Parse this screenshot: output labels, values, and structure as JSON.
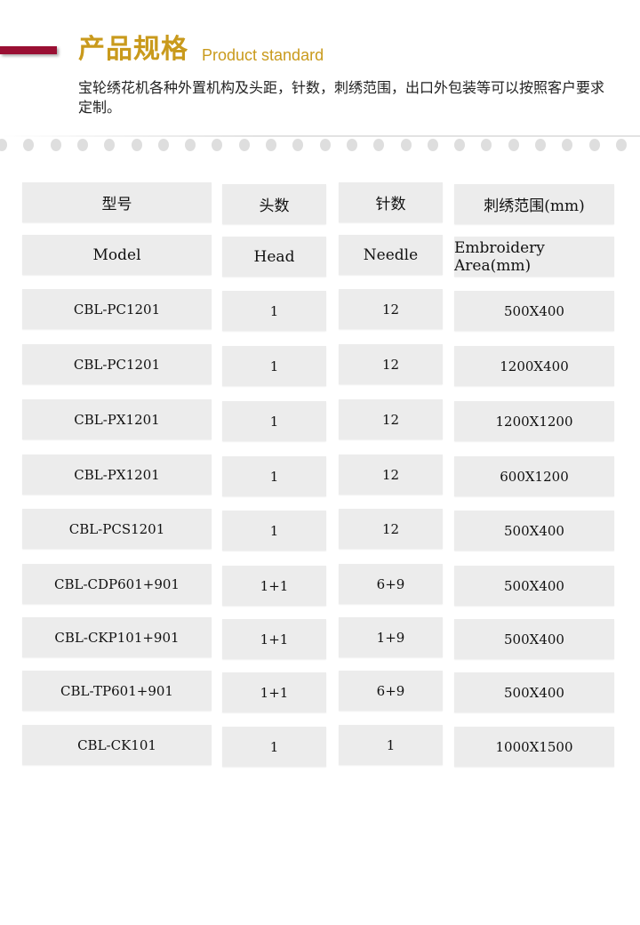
{
  "header": {
    "title": "产品规格",
    "subtitle": "Product standard",
    "description": "宝轮绣花机各种外置机构及头距，针数，刺绣范围，出口外包装等可以按照客户要求定制。",
    "accent_color": "#c99a1c",
    "bar_color": "#9a0f33"
  },
  "table": {
    "header_cn": [
      "型号",
      "头数",
      "针数",
      "刺绣范围(mm)"
    ],
    "header_en": [
      "Model",
      "Head",
      "Needle",
      "Embroidery Area(mm)"
    ],
    "rows": [
      [
        "CBL-PC1201",
        "1",
        "12",
        "500X400"
      ],
      [
        "CBL-PC1201",
        "1",
        "12",
        "1200X400"
      ],
      [
        "CBL-PX1201",
        "1",
        "12",
        "1200X1200"
      ],
      [
        "CBL-PX1201",
        "1",
        "12",
        "600X1200"
      ],
      [
        "CBL-PCS1201",
        "1",
        "12",
        "500X400"
      ],
      [
        "CBL-CDP601+901",
        "1+1",
        "6+9",
        "500X400"
      ],
      [
        "CBL-CKP101+901",
        "1+1",
        "1+9",
        "500X400"
      ],
      [
        "CBL-TP601+901",
        "1+1",
        "6+9",
        "500X400"
      ],
      [
        "CBL-CK101",
        "1",
        "1",
        "1000X1500"
      ]
    ]
  }
}
